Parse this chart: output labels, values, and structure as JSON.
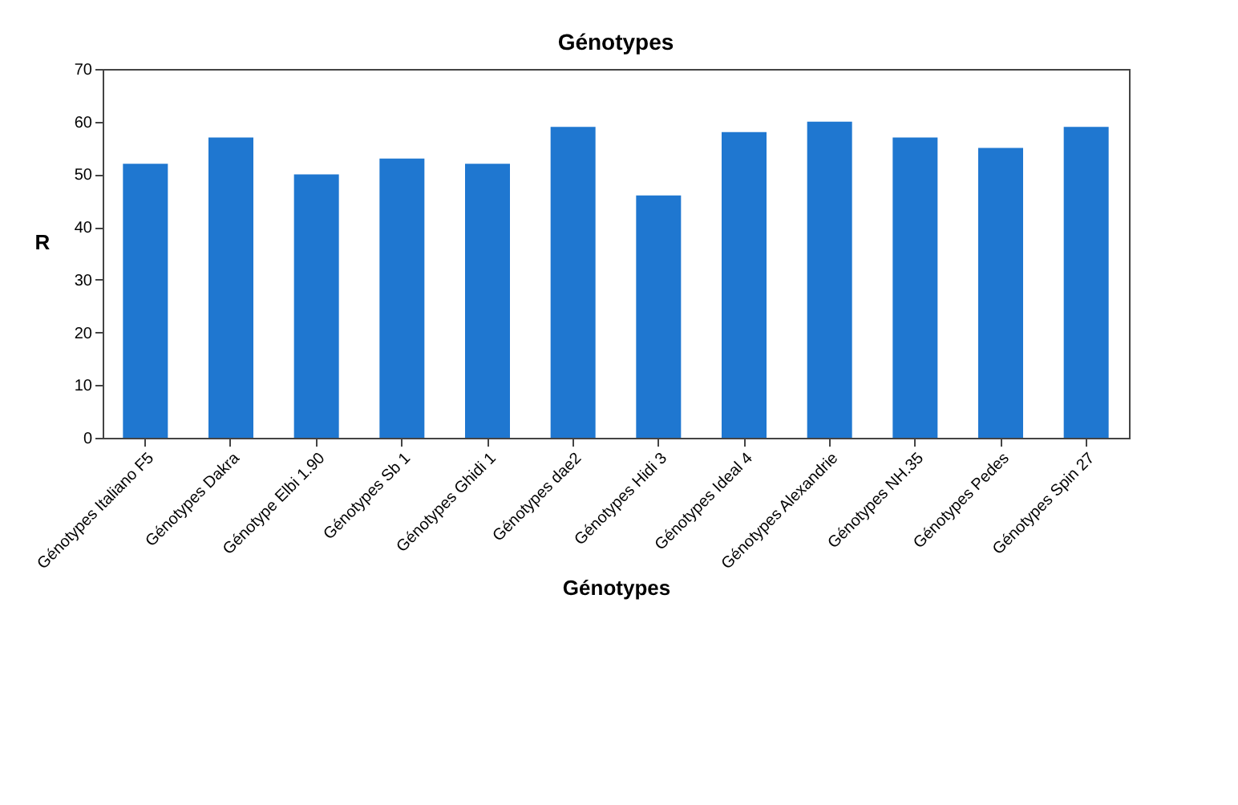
{
  "chart_data": {
    "type": "bar",
    "title": "Génotypes",
    "xlabel": "Génotypes",
    "ylabel": "R",
    "categories": [
      "Génotypes Italiano F5",
      "Génotypes Dakra",
      "Génotype Elbi 1.90",
      "Génotypes Sb 1",
      "Génotypes Ghidi 1",
      "Génotypes dae2",
      "Génotypes Hidi 3",
      "Génotypes Ideal 4",
      "Génotypes Alexandrie",
      "Génotypes NH.35",
      "Génotypes Pedes",
      "Génotypes Spin 27"
    ],
    "values": [
      52,
      57,
      50,
      53,
      52,
      59,
      46,
      58,
      60,
      57,
      55,
      59
    ],
    "color": "#1f77d0",
    "ylim": [
      0,
      70
    ],
    "yticks": [
      0,
      10,
      20,
      30,
      40,
      50,
      60,
      70
    ]
  }
}
